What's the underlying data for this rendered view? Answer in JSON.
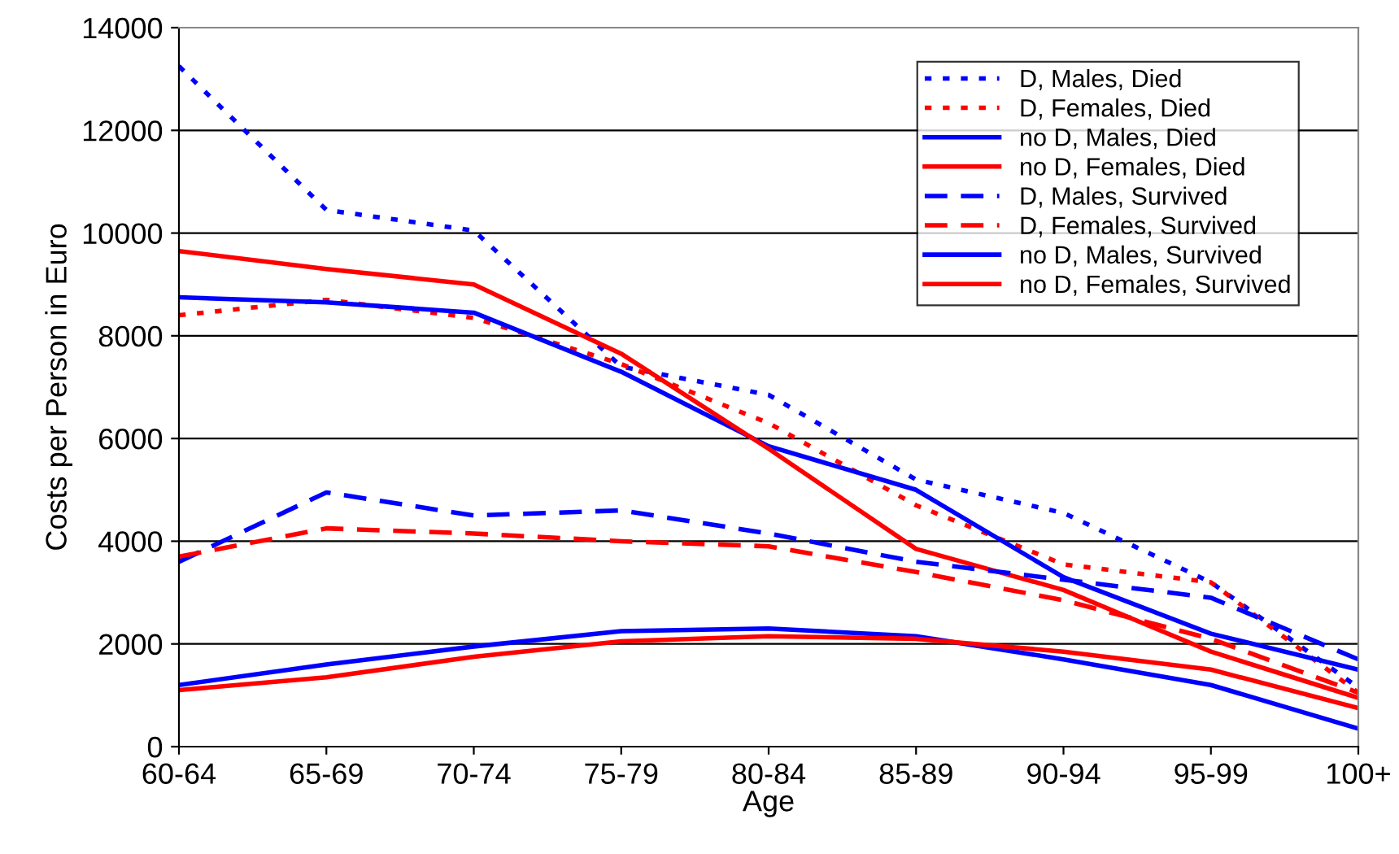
{
  "chart_data": {
    "type": "line",
    "xlabel": "Age",
    "ylabel": "Costs per Person in Euro",
    "categories": [
      "60-64",
      "65-69",
      "70-74",
      "75-79",
      "80-84",
      "85-89",
      "90-94",
      "95-99",
      "100+"
    ],
    "ylim": [
      0,
      14000
    ],
    "yticks": [
      0,
      2000,
      4000,
      6000,
      8000,
      10000,
      12000,
      14000
    ],
    "grid": "y",
    "legend": "top right",
    "marker": "none",
    "series": [
      {
        "name": "D, Males, Died",
        "color": "#0000ff",
        "line_style": "dotted",
        "values": [
          13250,
          10450,
          10050,
          7400,
          6850,
          5200,
          4550,
          3200,
          1150
        ]
      },
      {
        "name": "D, Females, Died",
        "color": "#ff0000",
        "line_style": "dotted",
        "values": [
          8400,
          8700,
          8350,
          7450,
          6300,
          4700,
          3550,
          3200,
          1050
        ]
      },
      {
        "name": "no D, Males, Died",
        "color": "#0000ff",
        "line_style": "solid",
        "values": [
          8750,
          8650,
          8450,
          7300,
          5850,
          5000,
          3300,
          2200,
          1500
        ]
      },
      {
        "name": "no D, Females, Died",
        "color": "#ff0000",
        "line_style": "solid",
        "values": [
          9650,
          9300,
          9000,
          7650,
          5800,
          3850,
          3050,
          1850,
          950
        ]
      },
      {
        "name": "D, Males, Survived",
        "color": "#0000ff",
        "line_style": "dashed",
        "values": [
          3600,
          4950,
          4500,
          4600,
          4150,
          3600,
          3250,
          2900,
          1700
        ]
      },
      {
        "name": "D, Females, Survived",
        "color": "#ff0000",
        "line_style": "dashed",
        "values": [
          3700,
          4250,
          4150,
          4000,
          3900,
          3400,
          2850,
          2100,
          1050
        ]
      },
      {
        "name": "no D, Males, Survived",
        "color": "#0000ff",
        "line_style": "solid",
        "values": [
          1200,
          1600,
          1950,
          2250,
          2300,
          2150,
          1700,
          1200,
          350
        ]
      },
      {
        "name": "no D, Females, Survived",
        "color": "#ff0000",
        "line_style": "solid",
        "values": [
          1100,
          1350,
          1750,
          2050,
          2150,
          2100,
          1850,
          1500,
          750
        ]
      }
    ]
  }
}
